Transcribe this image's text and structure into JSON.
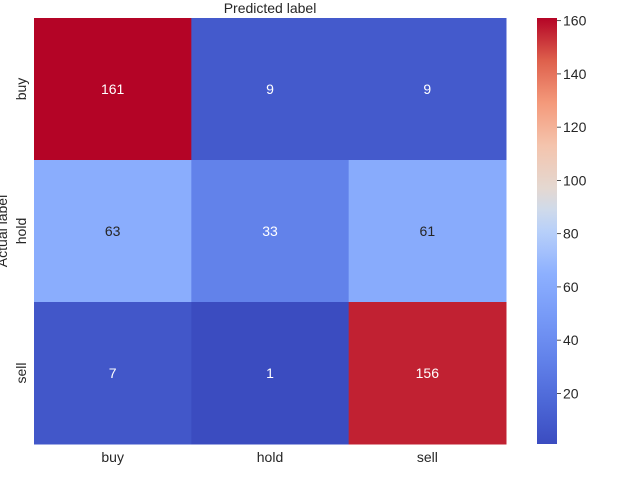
{
  "chart_data": {
    "type": "heatmap",
    "title": "",
    "xlabel": "Predicted label",
    "ylabel": "Actual label",
    "x_categories": [
      "buy",
      "hold",
      "sell"
    ],
    "y_categories": [
      "buy",
      "hold",
      "sell"
    ],
    "values": [
      [
        161,
        9,
        9
      ],
      [
        63,
        33,
        61
      ],
      [
        7,
        1,
        156
      ]
    ],
    "colormap": "coolwarm",
    "colorbar": {
      "min": 1,
      "max": 161,
      "ticks": [
        20,
        40,
        60,
        80,
        100,
        120,
        140,
        160
      ]
    },
    "xlabel_position": "top",
    "grid": false,
    "legend": "colorbar-right"
  }
}
